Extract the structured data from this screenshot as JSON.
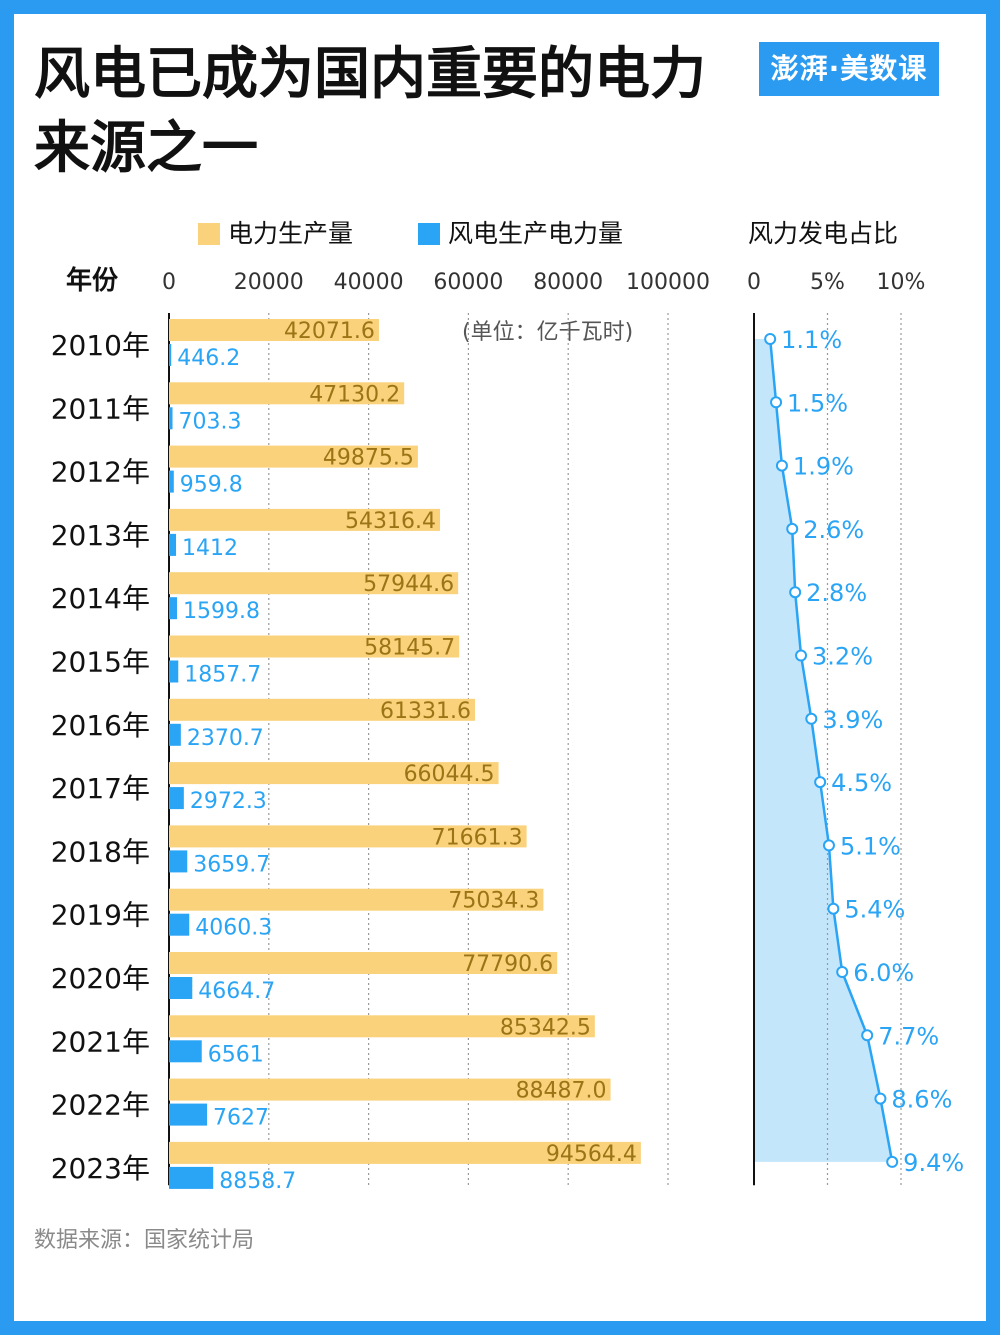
{
  "title_line1": "风电已成为国内重要的电力",
  "title_line2": "来源之一",
  "logo": "澎湃·美数课",
  "legend": {
    "total": "电力生产量",
    "wind": "风电生产电力量",
    "share": "风力发电占比"
  },
  "year_header": "年份",
  "unit": "(单位：亿千瓦时)",
  "source": "数据来源：国家统计局",
  "colors": {
    "total": "#f9d27b",
    "total_label": "#9c7416",
    "wind": "#2aa4f4",
    "share_fill": "#c4e6fb",
    "share_line": "#2aa4f4",
    "frame": "#2a9bf0"
  },
  "chart_data": [
    {
      "type": "bar",
      "orientation": "horizontal",
      "categories": [
        "2010年",
        "2011年",
        "2012年",
        "2013年",
        "2014年",
        "2015年",
        "2016年",
        "2017年",
        "2018年",
        "2019年",
        "2020年",
        "2021年",
        "2022年",
        "2023年"
      ],
      "xlim": [
        0,
        100000
      ],
      "xticks": [
        0,
        20000,
        40000,
        60000,
        80000,
        100000
      ],
      "grid": true,
      "series": [
        {
          "name": "电力生产量",
          "values": [
            42071.6,
            47130.2,
            49875.5,
            54316.4,
            57944.6,
            58145.7,
            61331.6,
            66044.5,
            71661.3,
            75034.3,
            77790.6,
            85342.5,
            88487.0,
            94564.4
          ],
          "labels": [
            "42071.6",
            "47130.2",
            "49875.5",
            "54316.4",
            "57944.6",
            "58145.7",
            "61331.6",
            "66044.5",
            "71661.3",
            "75034.3",
            "77790.6",
            "85342.5",
            "88487.0",
            "94564.4"
          ]
        },
        {
          "name": "风电生产电力量",
          "values": [
            446.2,
            703.3,
            959.8,
            1412,
            1599.8,
            1857.7,
            2370.7,
            2972.3,
            3659.7,
            4060.3,
            4664.7,
            6561,
            7627,
            8858.7
          ],
          "labels": [
            "446.2",
            "703.3",
            "959.8",
            "1412",
            "1599.8",
            "1857.7",
            "2370.7",
            "2972.3",
            "3659.7",
            "4060.3",
            "4664.7",
            "6561",
            "7627",
            "8858.7"
          ]
        }
      ]
    },
    {
      "type": "area",
      "title": "风力发电占比",
      "categories": [
        "2010年",
        "2011年",
        "2012年",
        "2013年",
        "2014年",
        "2015年",
        "2016年",
        "2017年",
        "2018年",
        "2019年",
        "2020年",
        "2021年",
        "2022年",
        "2023年"
      ],
      "xlim": [
        0,
        10
      ],
      "xticks": [
        0,
        5,
        10
      ],
      "xtick_labels": [
        "0",
        "5%",
        "10%"
      ],
      "grid": true,
      "values": [
        1.1,
        1.5,
        1.9,
        2.6,
        2.8,
        3.2,
        3.9,
        4.5,
        5.1,
        5.4,
        6.0,
        7.7,
        8.6,
        9.4
      ],
      "labels": [
        "1.1%",
        "1.5%",
        "1.9%",
        "2.6%",
        "2.8%",
        "3.2%",
        "3.9%",
        "4.5%",
        "5.1%",
        "5.4%",
        "6.0%",
        "7.7%",
        "8.6%",
        "9.4%"
      ]
    }
  ]
}
